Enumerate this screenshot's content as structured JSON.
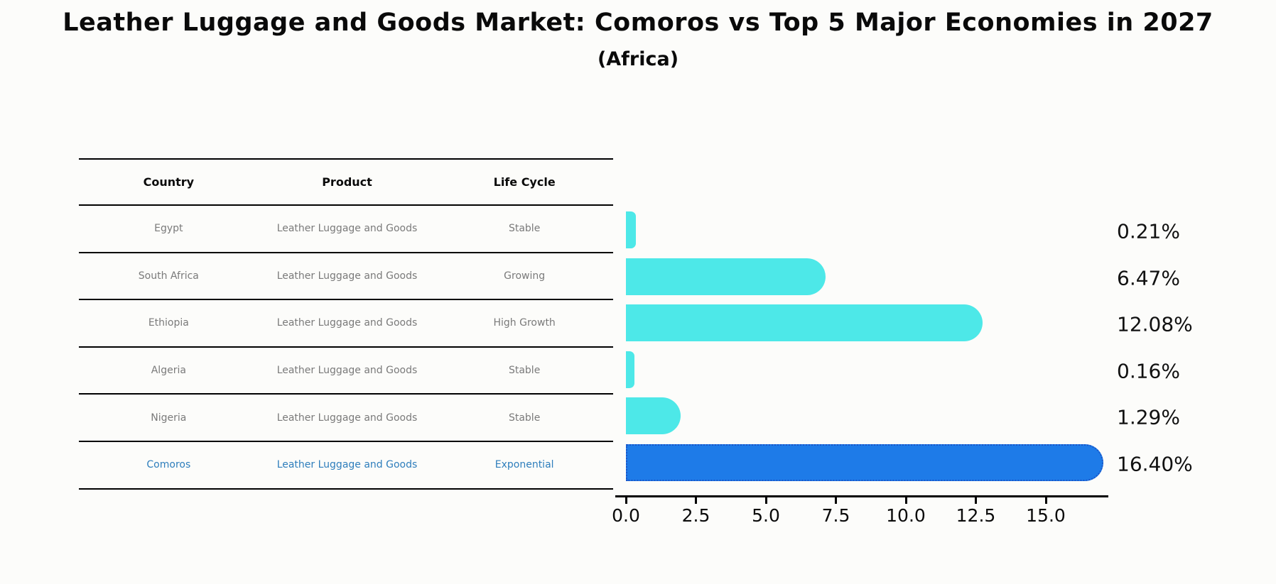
{
  "title": "Leather Luggage and Goods Market: Comoros vs Top 5 Major Economies in 2027",
  "subtitle": "(Africa)",
  "table": {
    "headers": [
      "Country",
      "Product",
      "Life Cycle"
    ],
    "rows": [
      {
        "country": "Egypt",
        "product": "Leather Luggage and Goods",
        "life_cycle": "Stable",
        "highlight": false
      },
      {
        "country": "South Africa",
        "product": "Leather Luggage and Goods",
        "life_cycle": "Growing",
        "highlight": false
      },
      {
        "country": "Ethiopia",
        "product": "Leather Luggage and Goods",
        "life_cycle": "High Growth",
        "highlight": false
      },
      {
        "country": "Algeria",
        "product": "Leather Luggage and Goods",
        "life_cycle": "Stable",
        "highlight": false
      },
      {
        "country": "Nigeria",
        "product": "Leather Luggage and Goods",
        "life_cycle": "Stable",
        "highlight": false
      },
      {
        "country": "Comoros",
        "product": "Leather Luggage and Goods",
        "life_cycle": "Exponential",
        "highlight": true
      }
    ]
  },
  "chart_data": {
    "type": "bar",
    "orientation": "horizontal",
    "categories": [
      "Egypt",
      "South Africa",
      "Ethiopia",
      "Algeria",
      "Nigeria",
      "Comoros"
    ],
    "values": [
      0.21,
      6.47,
      12.08,
      0.16,
      1.29,
      16.4
    ],
    "value_labels": [
      "0.21%",
      "6.47%",
      "12.08%",
      "0.16%",
      "1.29%",
      "16.40%"
    ],
    "highlight_index": 5,
    "xticks": [
      0.0,
      2.5,
      5.0,
      7.5,
      10.0,
      12.5,
      15.0
    ],
    "xtick_labels": [
      "0.0",
      "2.5",
      "5.0",
      "7.5",
      "10.0",
      "12.5",
      "15.0"
    ],
    "xlim": [
      0,
      17.2
    ],
    "grid": false,
    "legend": null,
    "colors": {
      "bar": "#4DE8E8",
      "highlight_bar": "#1E7BE8",
      "highlight_border": "#1A55C8",
      "table_text": "#7a7a7a",
      "highlight_text": "#2e7ebc",
      "axis": "#000000"
    }
  }
}
